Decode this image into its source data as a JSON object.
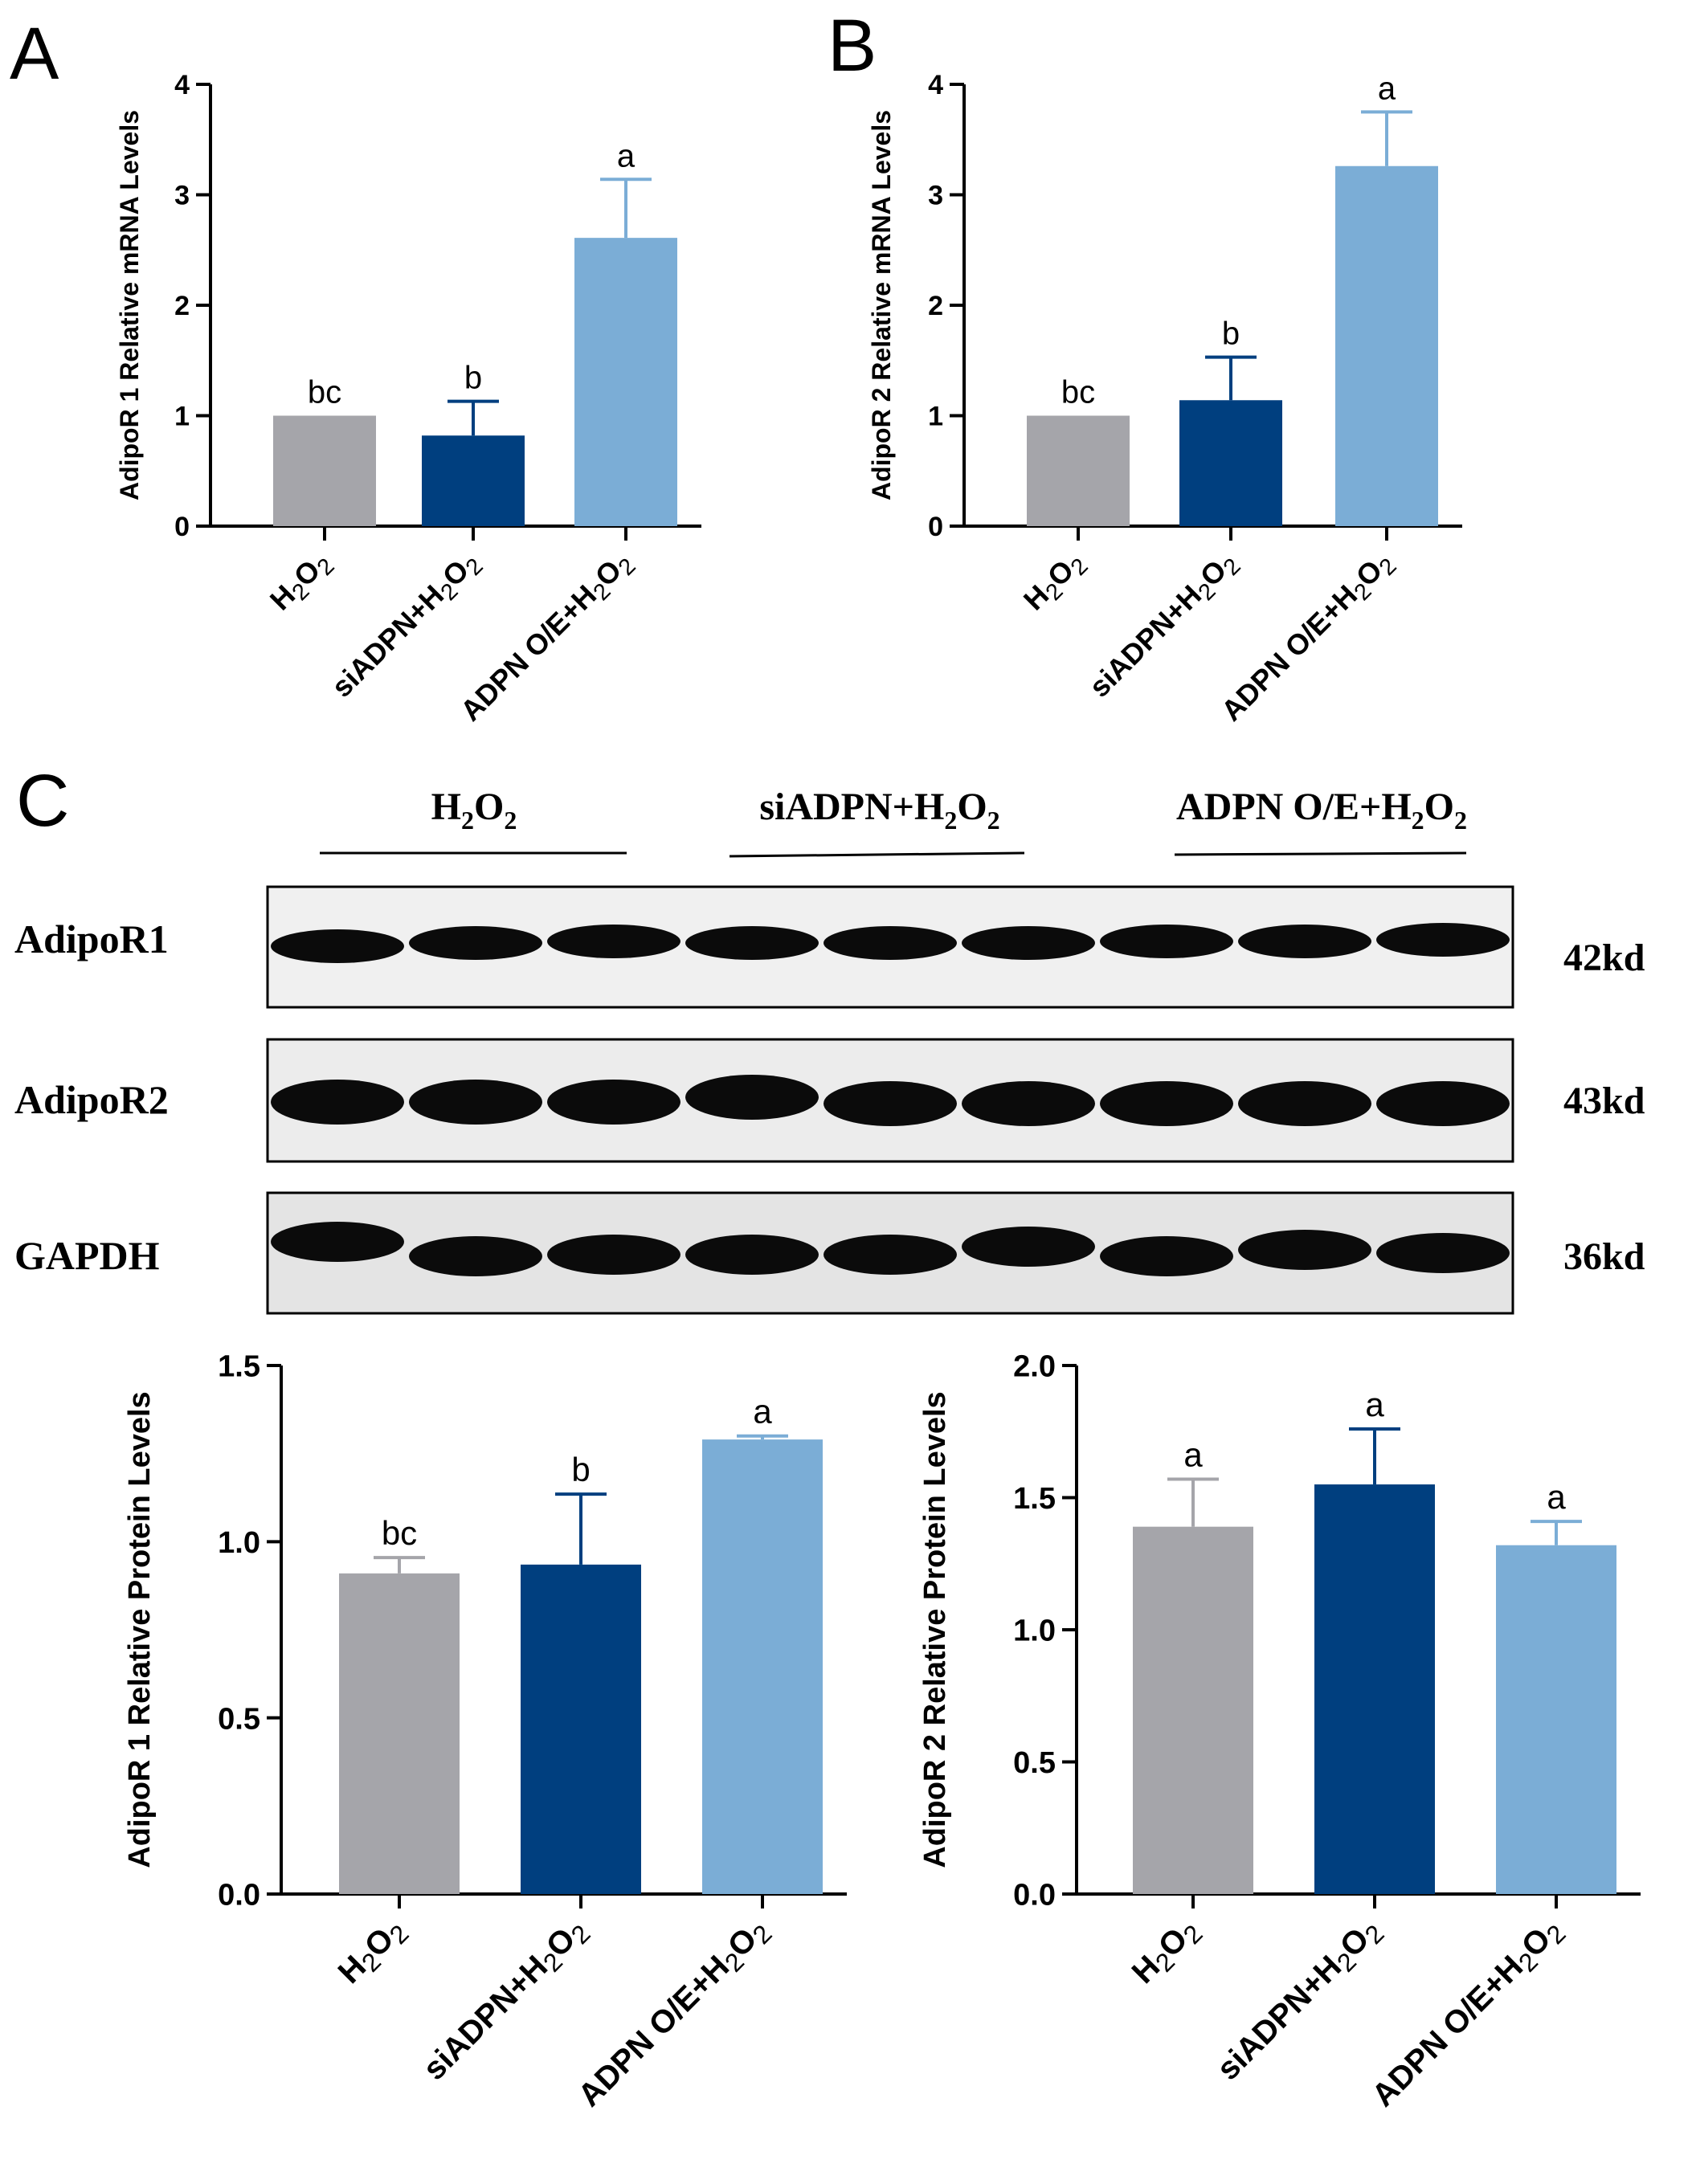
{
  "panels": {
    "A": "A",
    "B": "B",
    "C": "C"
  },
  "colors": {
    "h2o2": "#a5a5aa",
    "siadpn": "#003f7f",
    "adpn_oe": "#7badd6",
    "axis": "#000000"
  },
  "blot": {
    "groups": [
      {
        "name": "H",
        "sub1": "2",
        "mid": "O",
        "sub2": "2",
        "tail": ""
      },
      {
        "name": "siADPN+H",
        "sub1": "2",
        "mid": "O",
        "sub2": "2",
        "tail": ""
      },
      {
        "name": "ADPN O/E+H",
        "sub1": "2",
        "mid": "O",
        "sub2": "2",
        "tail": ""
      }
    ],
    "rows": [
      {
        "label": "AdipoR1",
        "size": "42kd"
      },
      {
        "label": "AdipoR2",
        "size": "43kd"
      },
      {
        "label": "GAPDH",
        "size": "36kd"
      }
    ],
    "lanes": 9
  },
  "chart_data": [
    {
      "id": "A",
      "type": "bar",
      "categories": [
        "H2O2",
        "siADPN+H2O2",
        "ADPN O/E+H2O2"
      ],
      "values": [
        1.0,
        0.82,
        2.61
      ],
      "errors": [
        0,
        0.31,
        0.53
      ],
      "letters": [
        "bc",
        "b",
        "a"
      ],
      "ylabel": "AdipoR 1 Relative mRNA Levels",
      "ylim": [
        0,
        4
      ],
      "yticks": [
        "0",
        "1",
        "2",
        "3",
        "4"
      ],
      "tickvalues": [
        0,
        1,
        2,
        3,
        4
      ]
    },
    {
      "id": "B",
      "type": "bar",
      "categories": [
        "H2O2",
        "siADPN+H2O2",
        "ADPN O/E+H2O2"
      ],
      "values": [
        1.0,
        1.14,
        3.26
      ],
      "errors": [
        0,
        0.39,
        0.49
      ],
      "letters": [
        "bc",
        "b",
        "a"
      ],
      "ylabel": "AdipoR 2 Relative mRNA Levels",
      "ylim": [
        0,
        4
      ],
      "yticks": [
        "0",
        "1",
        "2",
        "3",
        "4"
      ],
      "tickvalues": [
        0,
        1,
        2,
        3,
        4
      ]
    },
    {
      "id": "C1",
      "type": "bar",
      "categories": [
        "H2O2",
        "siADPN+H2O2",
        "ADPN O/E+H2O2"
      ],
      "values": [
        0.91,
        0.935,
        1.29
      ],
      "errors": [
        0.045,
        0.2,
        0.01
      ],
      "letters": [
        "bc",
        "b",
        "a"
      ],
      "ylabel": "AdipoR 1 Relative Protein Levels",
      "ylim": [
        0,
        1.5
      ],
      "yticks": [
        "0.0",
        "0.5",
        "1.0",
        "1.5"
      ],
      "tickvalues": [
        0,
        0.5,
        1.0,
        1.5
      ]
    },
    {
      "id": "C2",
      "type": "bar",
      "categories": [
        "H2O2",
        "siADPN+H2O2",
        "ADPN O/E+H2O2"
      ],
      "values": [
        1.39,
        1.55,
        1.32
      ],
      "errors": [
        0.18,
        0.21,
        0.09
      ],
      "letters": [
        "a",
        "a",
        "a"
      ],
      "ylabel": "AdipoR 2 Relative Protein Levels",
      "ylim": [
        0,
        2.0
      ],
      "yticks": [
        "0.0",
        "0.5",
        "1.0",
        "1.5",
        "2.0"
      ],
      "tickvalues": [
        0,
        0.5,
        1.0,
        1.5,
        2.0
      ]
    }
  ]
}
